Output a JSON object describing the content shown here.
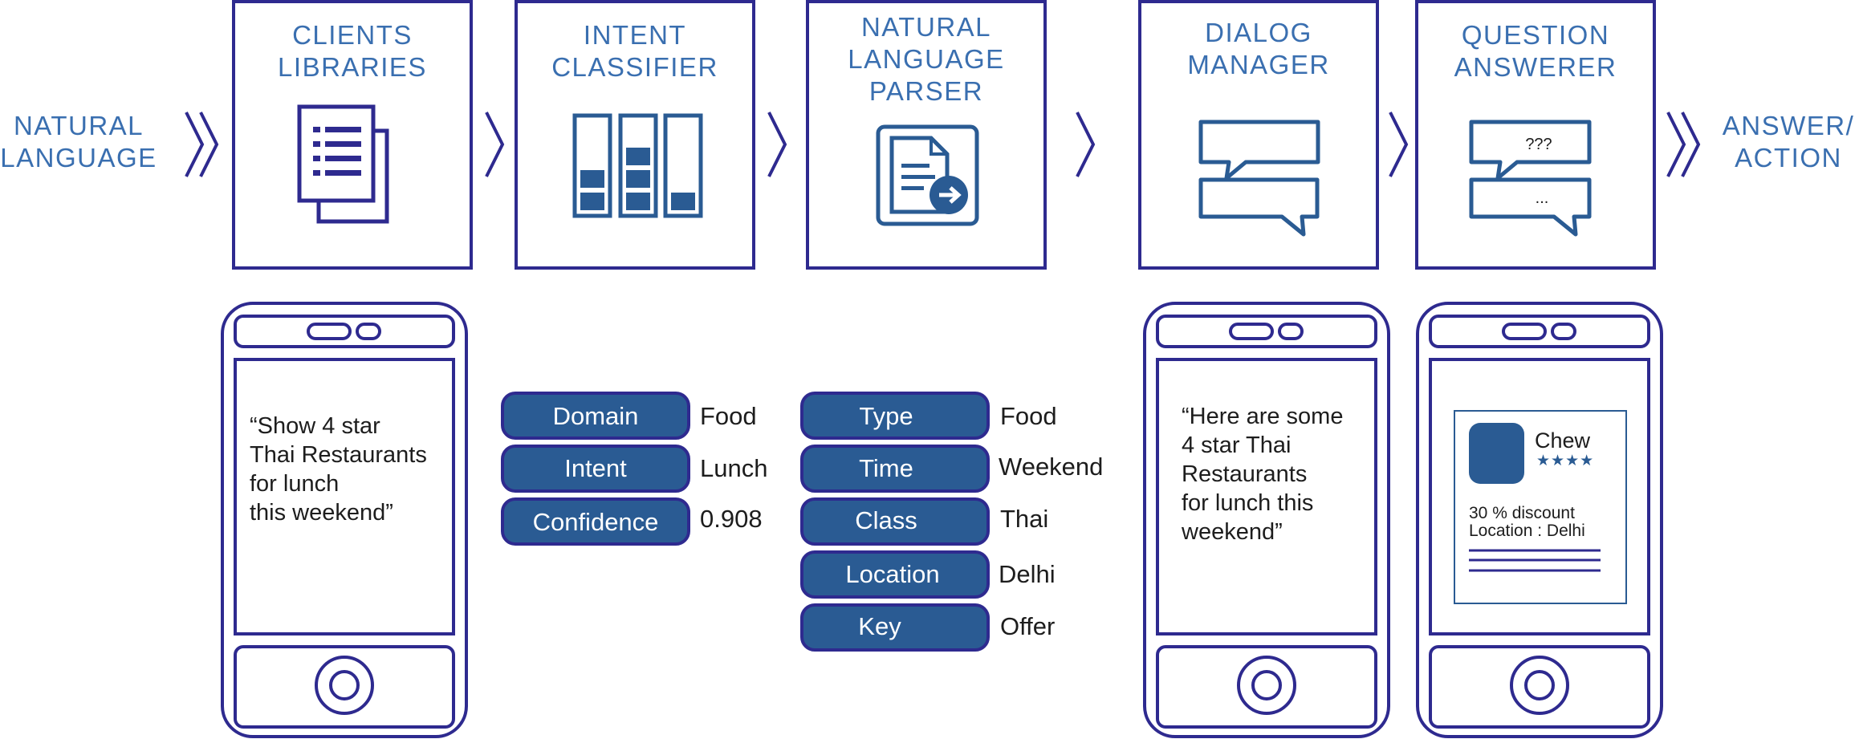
{
  "colors": {
    "outline": "#2e2a8f",
    "icon": "#2a5b93",
    "fill": "#2a5b93",
    "text_blue": "#3a6fb0"
  },
  "input_label": [
    "NATURAL",
    "LANGUAGE"
  ],
  "output_label": [
    "ANSWER/",
    "ACTION"
  ],
  "stages": [
    {
      "title": [
        "CLIENTS",
        "LIBRARIES"
      ],
      "icon": "documents-icon"
    },
    {
      "title": [
        "INTENT",
        "CLASSIFIER"
      ],
      "icon": "bar-levels-icon"
    },
    {
      "title": [
        "NATURAL",
        "LANGUAGE",
        "PARSER"
      ],
      "icon": "document-arrow-icon"
    },
    {
      "title": [
        "DIALOG",
        "MANAGER"
      ],
      "icon": "chat-bubbles-icon"
    },
    {
      "title": [
        "QUESTION",
        "ANSWERER"
      ],
      "icon": "question-bubbles-icon",
      "icon_text": [
        "???",
        "..."
      ]
    }
  ],
  "phone_left": {
    "text": [
      "“Show 4 star",
      "Thai Restaurants",
      "for lunch",
      "this weekend”"
    ]
  },
  "intent_fields": [
    {
      "label": "Domain",
      "value": "Food"
    },
    {
      "label": "Intent",
      "value": "Lunch"
    },
    {
      "label": "Confidence",
      "value": "0.908"
    }
  ],
  "parser_fields": [
    {
      "label": "Type",
      "value": "Food"
    },
    {
      "label": "Time",
      "value": "Weekend"
    },
    {
      "label": "Class",
      "value": "Thai"
    },
    {
      "label": "Location",
      "value": "Delhi"
    },
    {
      "label": "Key",
      "value": "Offer"
    }
  ],
  "phone_dialog": {
    "text": [
      "“Here are some",
      "4 star Thai",
      "Restaurants",
      "for lunch this",
      "weekend”"
    ]
  },
  "phone_answer": {
    "card_name": "Chew",
    "stars": "★★★★",
    "discount": "30 % discount",
    "location": "Location : Delhi"
  }
}
